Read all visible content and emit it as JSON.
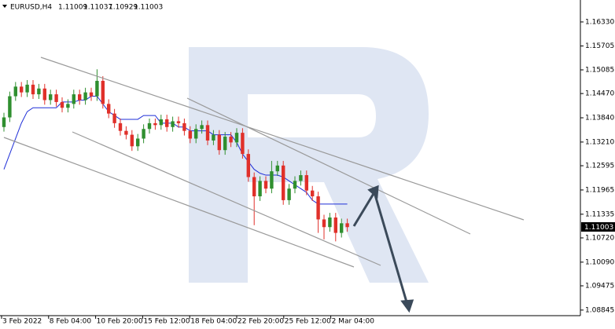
{
  "header": {
    "symbol": "EURUSD,H4",
    "open": "1.11009",
    "high": "1.11037",
    "low": "1.10929",
    "close": "1.11003"
  },
  "chart_data": {
    "type": "candlestick",
    "up_color": "#2f8f2f",
    "down_color": "#e0302a",
    "kijun_color": "#1f2fd8",
    "ylim": [
      1.087,
      1.169
    ],
    "yticks": [
      {
        "value": 1.1633,
        "label": "1.16330"
      },
      {
        "value": 1.15705,
        "label": "1.15705"
      },
      {
        "value": 1.15085,
        "label": "1.15085"
      },
      {
        "value": 1.1447,
        "label": "1.14470"
      },
      {
        "value": 1.1384,
        "label": "1.13840"
      },
      {
        "value": 1.1321,
        "label": "1.13210"
      },
      {
        "value": 1.12595,
        "label": "1.12595"
      },
      {
        "value": 1.11965,
        "label": "1.11965"
      },
      {
        "value": 1.11335,
        "label": "1.11335"
      },
      {
        "value": 1.1072,
        "label": "1.10720"
      },
      {
        "value": 1.1009,
        "label": "1.10090"
      },
      {
        "value": 1.09475,
        "label": "1.09475"
      },
      {
        "value": 1.08845,
        "label": "1.08845"
      }
    ],
    "xticks": [
      "3 Feb 2022",
      "8 Feb 04:00",
      "10 Feb 20:00",
      "15 Feb 12:00",
      "18 Feb 04:00",
      "22 Feb 20:00",
      "25 Feb 12:00",
      "2 Mar 04:00"
    ],
    "candles": [
      [
        1.136,
        1.1397,
        1.1348,
        1.1385
      ],
      [
        1.1385,
        1.1452,
        1.1373,
        1.144
      ],
      [
        1.144,
        1.1477,
        1.1428,
        1.1465
      ],
      [
        1.1465,
        1.1477,
        1.1438,
        1.145
      ],
      [
        1.145,
        1.1482,
        1.1438,
        1.147
      ],
      [
        1.147,
        1.1482,
        1.1433,
        1.1445
      ],
      [
        1.1445,
        1.1472,
        1.1433,
        1.146
      ],
      [
        1.146,
        1.1472,
        1.1418,
        1.143
      ],
      [
        1.143,
        1.1457,
        1.1418,
        1.1445
      ],
      [
        1.1445,
        1.1457,
        1.1413,
        1.1425
      ],
      [
        1.1425,
        1.1437,
        1.1398,
        1.141
      ],
      [
        1.141,
        1.1432,
        1.1398,
        1.142
      ],
      [
        1.142,
        1.1457,
        1.1408,
        1.1445
      ],
      [
        1.1445,
        1.1457,
        1.1418,
        1.143
      ],
      [
        1.143,
        1.1462,
        1.1418,
        1.145
      ],
      [
        1.145,
        1.1462,
        1.1428,
        1.144
      ],
      [
        1.144,
        1.151,
        1.1428,
        1.148
      ],
      [
        1.148,
        1.1492,
        1.1408,
        1.142
      ],
      [
        1.142,
        1.1432,
        1.1383,
        1.1395
      ],
      [
        1.1395,
        1.1407,
        1.1358,
        1.137
      ],
      [
        1.137,
        1.1382,
        1.1338,
        1.135
      ],
      [
        1.135,
        1.1362,
        1.1328,
        1.134
      ],
      [
        1.134,
        1.1352,
        1.1298,
        1.131
      ],
      [
        1.131,
        1.1342,
        1.1298,
        1.133
      ],
      [
        1.133,
        1.1367,
        1.1318,
        1.1355
      ],
      [
        1.1355,
        1.1382,
        1.1343,
        1.137
      ],
      [
        1.137,
        1.1382,
        1.1353,
        1.1365
      ],
      [
        1.1365,
        1.1392,
        1.1353,
        1.138
      ],
      [
        1.138,
        1.1392,
        1.1348,
        1.136
      ],
      [
        1.136,
        1.1387,
        1.1348,
        1.1375
      ],
      [
        1.1375,
        1.1387,
        1.1358,
        1.137
      ],
      [
        1.137,
        1.1382,
        1.1338,
        1.135
      ],
      [
        1.135,
        1.1362,
        1.1318,
        1.133
      ],
      [
        1.133,
        1.1367,
        1.1318,
        1.1355
      ],
      [
        1.1355,
        1.1377,
        1.1343,
        1.1365
      ],
      [
        1.1365,
        1.1377,
        1.1313,
        1.1325
      ],
      [
        1.1325,
        1.1352,
        1.1313,
        1.134
      ],
      [
        1.134,
        1.1352,
        1.1288,
        1.13
      ],
      [
        1.13,
        1.1347,
        1.1288,
        1.1335
      ],
      [
        1.1335,
        1.1347,
        1.1308,
        1.132
      ],
      [
        1.132,
        1.1357,
        1.1308,
        1.1345
      ],
      [
        1.1345,
        1.1357,
        1.1278,
        1.129
      ],
      [
        1.129,
        1.1302,
        1.1218,
        1.123
      ],
      [
        1.123,
        1.1242,
        1.1105,
        1.118
      ],
      [
        1.118,
        1.1232,
        1.1168,
        1.122
      ],
      [
        1.122,
        1.1232,
        1.1188,
        1.12
      ],
      [
        1.12,
        1.1272,
        1.1188,
        1.1245
      ],
      [
        1.1245,
        1.1272,
        1.1233,
        1.126
      ],
      [
        1.126,
        1.1272,
        1.1158,
        1.117
      ],
      [
        1.117,
        1.1212,
        1.1158,
        1.12
      ],
      [
        1.12,
        1.1232,
        1.1188,
        1.122
      ],
      [
        1.122,
        1.1247,
        1.1208,
        1.1235
      ],
      [
        1.1235,
        1.1247,
        1.1183,
        1.1195
      ],
      [
        1.1195,
        1.1207,
        1.1168,
        1.118
      ],
      [
        1.118,
        1.1192,
        1.1085,
        1.112
      ],
      [
        1.112,
        1.1132,
        1.1068,
        1.11
      ],
      [
        1.11,
        1.1137,
        1.1088,
        1.1125
      ],
      [
        1.1125,
        1.1137,
        1.1063,
        1.1085
      ],
      [
        1.1085,
        1.1122,
        1.1073,
        1.111
      ],
      [
        1.111,
        1.1122,
        1.1088,
        1.11
      ]
    ],
    "kijun": [
      1.125,
      1.129,
      1.133,
      1.137,
      1.14,
      1.141,
      1.141,
      1.141,
      1.141,
      1.141,
      1.1425,
      1.1425,
      1.1425,
      1.143,
      1.143,
      1.144,
      1.144,
      1.142,
      1.14,
      1.139,
      1.138,
      1.138,
      1.138,
      1.138,
      1.139,
      1.139,
      1.139,
      1.137,
      1.137,
      1.137,
      1.136,
      1.136,
      1.135,
      1.135,
      1.135,
      1.135,
      1.134,
      1.134,
      1.134,
      1.134,
      1.132,
      1.129,
      1.127,
      1.125,
      1.124,
      1.1235,
      1.1235,
      1.1235,
      1.123,
      1.122,
      1.121,
      1.12,
      1.119,
      1.117,
      1.116,
      1.116,
      1.116,
      1.116,
      1.116,
      1.116
    ]
  }
}
